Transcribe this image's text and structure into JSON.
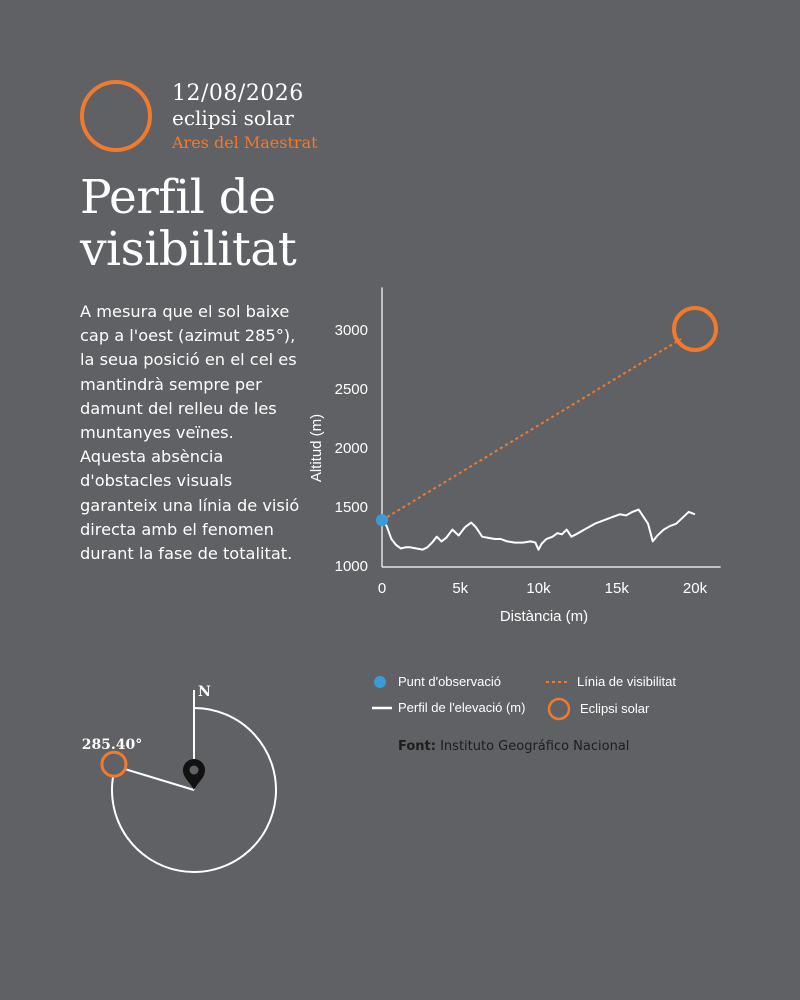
{
  "header": {
    "date": "12/08/2026",
    "event": "eclipsi solar",
    "place": "Ares del Maestrat"
  },
  "title": {
    "line1": "Perfil de",
    "line2": "visibilitat"
  },
  "description": "A mesura que el sol baixe cap a l'oest (azimut 285°), la seua posició en el cel es mantindrà sempre per damunt del relleu de les muntanyes veïnes. Aquesta absència d'obstacles visuals garanteix una línia de visió directa amb el fenomen durant la fase de totalitat.",
  "chart_data": {
    "type": "line",
    "xlabel": "Distància (m)",
    "ylabel": "Altitud (m)",
    "xlim": [
      0,
      21000
    ],
    "ylim": [
      1000,
      3200
    ],
    "x_ticks": [
      0,
      5000,
      10000,
      15000,
      20000
    ],
    "x_tick_labels": [
      "0",
      "5k",
      "10k",
      "15k",
      "20k"
    ],
    "y_ticks": [
      1000,
      1500,
      2000,
      2500,
      3000
    ],
    "y_tick_labels": [
      "1000",
      "1500",
      "2000",
      "2500",
      "3000"
    ],
    "observation_point": {
      "x": 0,
      "y": 1380
    },
    "eclipse_point": {
      "x": 20000,
      "y": 3000
    },
    "series": [
      {
        "name": "Perfil de l'elevació (m)",
        "x": [
          0,
          300,
          600,
          900,
          1200,
          1500,
          1800,
          2200,
          2600,
          2900,
          3200,
          3500,
          3800,
          4100,
          4500,
          4900,
          5300,
          5700,
          6000,
          6400,
          6800,
          7200,
          7600,
          8000,
          8500,
          9000,
          9500,
          9800,
          10000,
          10200,
          10500,
          10900,
          11200,
          11500,
          11800,
          12100,
          12400,
          12800,
          13200,
          13600,
          14000,
          14400,
          14800,
          15200,
          15600,
          16000,
          16400,
          16700,
          17000,
          17300,
          17600,
          18000,
          18400,
          18800,
          19200,
          19600,
          20000
        ],
        "y": [
          1380,
          1330,
          1220,
          1170,
          1140,
          1150,
          1150,
          1140,
          1130,
          1150,
          1190,
          1240,
          1200,
          1230,
          1300,
          1250,
          1320,
          1360,
          1320,
          1240,
          1230,
          1220,
          1220,
          1200,
          1190,
          1190,
          1200,
          1190,
          1130,
          1180,
          1220,
          1240,
          1270,
          1260,
          1300,
          1240,
          1260,
          1290,
          1320,
          1350,
          1370,
          1390,
          1410,
          1430,
          1420,
          1450,
          1470,
          1410,
          1350,
          1200,
          1250,
          1300,
          1330,
          1350,
          1400,
          1450,
          1430
        ]
      },
      {
        "name": "Línia de visibilitat",
        "x": [
          0,
          20000
        ],
        "y": [
          1380,
          3000
        ]
      }
    ],
    "legend": [
      {
        "label": "Punt d'observació",
        "kind": "dot"
      },
      {
        "label": "Línia de visibilitat",
        "kind": "dashed"
      },
      {
        "label": "Perfil de l'elevació (m)",
        "kind": "line"
      },
      {
        "label": "Eclipsi solar",
        "kind": "ring"
      }
    ],
    "colors": {
      "profile": "#ffffff",
      "visibility": "#f07a2e",
      "observation": "#3a9bd9",
      "eclipse": "#f07a2e"
    }
  },
  "source": {
    "prefix": "Font:",
    "text": "Instituto Geográfico Nacional"
  },
  "compass": {
    "north_label": "N",
    "azimuth_label": "285.40°",
    "azimuth_deg": 285.4
  }
}
